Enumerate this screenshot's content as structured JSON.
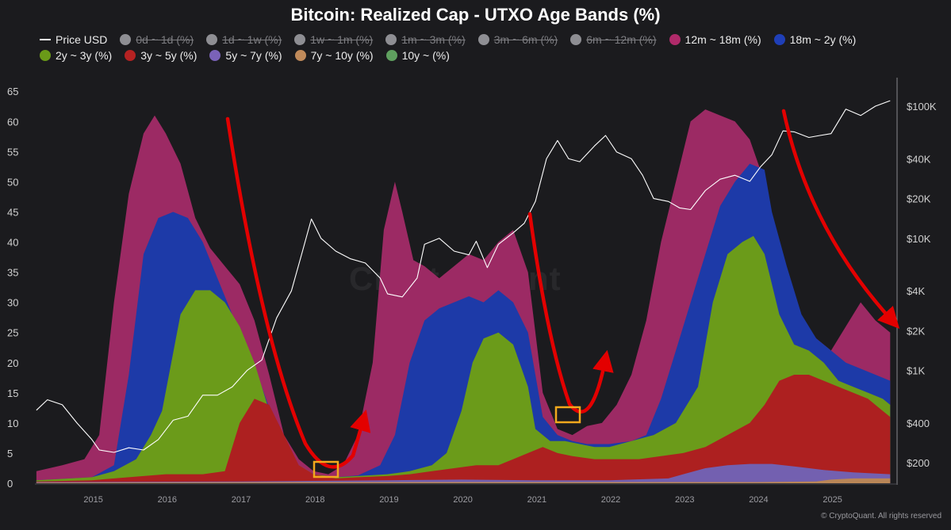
{
  "chart_data": {
    "type": "area",
    "title": "Bitcoin: Realized Cap - UTXO Age Bands (%)",
    "x_years": [
      "2015",
      "2016",
      "2017",
      "2018",
      "2019",
      "2020",
      "2021",
      "2022",
      "2023",
      "2024",
      "2025"
    ],
    "y_left_ticks": [
      0,
      5,
      10,
      15,
      20,
      25,
      30,
      35,
      40,
      45,
      50,
      55,
      60,
      65
    ],
    "y_right_ticks": [
      "$200",
      "$400",
      "$1K",
      "$2K",
      "$4K",
      "$10K",
      "$20K",
      "$40K",
      "$100K"
    ],
    "y_right_values": [
      200,
      400,
      1000,
      2000,
      4000,
      10000,
      20000,
      40000,
      100000
    ],
    "ylim_left": [
      0,
      67
    ],
    "log_right": true,
    "legend": [
      {
        "name": "Price USD",
        "color": "#ffffff",
        "active": true,
        "kind": "line"
      },
      {
        "name": "0d ~ 1d (%)",
        "color": "#8e8e93",
        "active": false
      },
      {
        "name": "1d ~ 1w (%)",
        "color": "#8e8e93",
        "active": false
      },
      {
        "name": "1w ~ 1m (%)",
        "color": "#8e8e93",
        "active": false
      },
      {
        "name": "1m ~ 3m (%)",
        "color": "#8e8e93",
        "active": false
      },
      {
        "name": "3m ~ 6m (%)",
        "color": "#8e8e93",
        "active": false
      },
      {
        "name": "6m ~ 12m (%)",
        "color": "#8e8e93",
        "active": false
      },
      {
        "name": "12m ~ 18m (%)",
        "color": "#b02a6a",
        "active": true
      },
      {
        "name": "18m ~ 2y (%)",
        "color": "#1f3fb8",
        "active": true
      },
      {
        "name": "2y ~ 3y (%)",
        "color": "#6a9a18",
        "active": true
      },
      {
        "name": "3y ~ 5y (%)",
        "color": "#b52222",
        "active": true
      },
      {
        "name": "5y ~ 7y (%)",
        "color": "#7a62b8",
        "active": true
      },
      {
        "name": "7y ~ 10y (%)",
        "color": "#c08a5a",
        "active": true
      },
      {
        "name": "10y ~ (%)",
        "color": "#5fa05f",
        "active": true
      }
    ],
    "series_stacked_totals": [
      {
        "name": "12m ~ 18m (%)",
        "color": "#9c2a64",
        "x": [
          2014.25,
          2014.6,
          2014.9,
          2015.1,
          2015.3,
          2015.5,
          2015.7,
          2015.85,
          2016.0,
          2016.2,
          2016.4,
          2016.6,
          2016.8,
          2017.0,
          2017.2,
          2017.4,
          2017.6,
          2017.8,
          2018.0,
          2018.2,
          2018.4,
          2018.6,
          2018.8,
          2018.95,
          2019.1,
          2019.2,
          2019.35,
          2019.5,
          2019.7,
          2019.9,
          2020.1,
          2020.3,
          2020.5,
          2020.7,
          2020.9,
          2021.1,
          2021.3,
          2021.5,
          2021.7,
          2021.9,
          2022.1,
          2022.3,
          2022.5,
          2022.7,
          2022.9,
          2023.1,
          2023.3,
          2023.5,
          2023.7,
          2023.9,
          2024.1,
          2024.25,
          2024.4,
          2024.6,
          2024.8,
          2025.0,
          2025.2,
          2025.4,
          2025.6,
          2025.8
        ],
        "values": [
          2,
          3,
          4,
          8,
          30,
          48,
          58,
          61,
          58,
          53,
          44,
          39,
          36,
          33,
          27,
          18,
          8,
          4,
          2,
          1.5,
          3,
          8,
          20,
          42,
          50,
          45,
          37,
          36,
          34,
          36,
          38,
          37,
          40,
          42,
          35,
          15,
          9,
          8,
          9.5,
          10,
          13,
          18,
          27,
          40,
          50,
          60,
          62,
          61,
          60,
          57,
          50,
          35,
          30,
          27,
          24,
          22,
          26,
          30,
          27,
          25
        ]
      },
      {
        "name": "18m ~ 2y (%)",
        "color": "#1d3aa8",
        "x": [
          2014.25,
          2015.0,
          2015.3,
          2015.5,
          2015.7,
          2015.9,
          2016.1,
          2016.3,
          2016.5,
          2016.7,
          2016.9,
          2017.1,
          2017.3,
          2017.5,
          2017.7,
          2017.9,
          2018.1,
          2018.3,
          2018.6,
          2018.9,
          2019.1,
          2019.3,
          2019.5,
          2019.7,
          2019.9,
          2020.1,
          2020.3,
          2020.5,
          2020.7,
          2020.9,
          2021.0,
          2021.1,
          2021.3,
          2021.5,
          2021.7,
          2022.0,
          2022.3,
          2022.5,
          2022.7,
          2022.9,
          2023.1,
          2023.3,
          2023.5,
          2023.7,
          2023.9,
          2024.1,
          2024.2,
          2024.4,
          2024.6,
          2024.8,
          2025.0,
          2025.2,
          2025.4,
          2025.6,
          2025.8
        ],
        "values": [
          0.5,
          1,
          3,
          18,
          38,
          44,
          45,
          44,
          40,
          34,
          28,
          22,
          16,
          9,
          4,
          2,
          1.2,
          1,
          1.3,
          3,
          8,
          20,
          27,
          29,
          30,
          31,
          30,
          32,
          30,
          25,
          18,
          11,
          8,
          7,
          6.5,
          6.5,
          7,
          8,
          14,
          22,
          30,
          38,
          46,
          50,
          53,
          52,
          45,
          36,
          28,
          24,
          22,
          20,
          19,
          18,
          17
        ]
      },
      {
        "name": "2y ~ 3y (%)",
        "color": "#6b9b1a",
        "x": [
          2014.25,
          2015.0,
          2015.3,
          2015.6,
          2015.8,
          2015.95,
          2016.2,
          2016.4,
          2016.6,
          2016.8,
          2017.0,
          2017.2,
          2017.4,
          2017.6,
          2017.8,
          2018.0,
          2018.3,
          2018.6,
          2019.0,
          2019.3,
          2019.6,
          2019.8,
          2020.0,
          2020.15,
          2020.3,
          2020.5,
          2020.7,
          2020.9,
          2021.0,
          2021.2,
          2021.4,
          2021.6,
          2021.8,
          2022.0,
          2022.3,
          2022.6,
          2022.9,
          2023.2,
          2023.4,
          2023.6,
          2023.8,
          2023.95,
          2024.1,
          2024.3,
          2024.5,
          2024.7,
          2024.9,
          2025.1,
          2025.3,
          2025.5,
          2025.7,
          2025.8
        ],
        "values": [
          0.5,
          1,
          2,
          4,
          8,
          12,
          28,
          32,
          32,
          30,
          26,
          20,
          12,
          6,
          3,
          1.5,
          1,
          1.2,
          1.5,
          2,
          3,
          5,
          12,
          20,
          24,
          25,
          23,
          16,
          9,
          7,
          7,
          6.5,
          6,
          6,
          7,
          8,
          10,
          16,
          30,
          38,
          40,
          41,
          38,
          28,
          23,
          22,
          20,
          17,
          16,
          15,
          14,
          13
        ]
      },
      {
        "name": "3y ~ 5y (%)",
        "color": "#ad2020",
        "x": [
          2014.25,
          2015.0,
          2015.5,
          2016.0,
          2016.5,
          2016.8,
          2017.0,
          2017.2,
          2017.4,
          2017.6,
          2017.8,
          2018.0,
          2018.3,
          2018.6,
          2019.0,
          2019.3,
          2019.6,
          2019.9,
          2020.2,
          2020.5,
          2020.7,
          2020.9,
          2021.1,
          2021.3,
          2021.5,
          2021.8,
          2022.1,
          2022.4,
          2022.7,
          2023.0,
          2023.3,
          2023.6,
          2023.9,
          2024.1,
          2024.3,
          2024.5,
          2024.7,
          2024.9,
          2025.1,
          2025.3,
          2025.5,
          2025.7,
          2025.8
        ],
        "values": [
          0.3,
          0.5,
          1,
          1.5,
          1.5,
          2,
          10,
          14,
          13,
          8,
          3,
          1.5,
          0.8,
          1,
          1.2,
          1.5,
          2,
          2.5,
          3,
          3,
          4,
          5,
          6,
          5,
          4.5,
          4,
          4,
          4,
          4.5,
          5,
          6,
          8,
          10,
          13,
          17,
          18,
          18,
          17,
          16,
          15,
          14,
          12,
          11
        ]
      },
      {
        "name": "5y ~ 7y (%)",
        "color": "#7360b0",
        "x": [
          2014.25,
          2017.0,
          2018.0,
          2019.0,
          2020.0,
          2021.0,
          2022.0,
          2022.8,
          2023.0,
          2023.3,
          2023.6,
          2023.9,
          2024.2,
          2024.5,
          2024.9,
          2025.3,
          2025.8
        ],
        "values": [
          0.2,
          0.3,
          0.4,
          0.5,
          0.6,
          0.5,
          0.5,
          0.8,
          1.5,
          2.5,
          3,
          3.2,
          3.2,
          2.8,
          2.2,
          1.8,
          1.5
        ]
      },
      {
        "name": "7y ~ 10y (%)",
        "color": "#b98657",
        "x": [
          2014.25,
          2018.0,
          2020.0,
          2022.0,
          2024.0,
          2024.8,
          2025.0,
          2025.3,
          2025.8
        ],
        "values": [
          0.1,
          0.2,
          0.2,
          0.2,
          0.2,
          0.3,
          0.6,
          0.8,
          0.8
        ]
      }
    ],
    "price_usd": {
      "x": [
        2014.25,
        2014.4,
        2014.6,
        2014.8,
        2015.0,
        2015.1,
        2015.3,
        2015.5,
        2015.7,
        2015.9,
        2016.1,
        2016.3,
        2016.5,
        2016.7,
        2016.9,
        2017.1,
        2017.3,
        2017.5,
        2017.7,
        2017.85,
        2017.97,
        2018.1,
        2018.3,
        2018.5,
        2018.7,
        2018.9,
        2019.0,
        2019.2,
        2019.4,
        2019.5,
        2019.7,
        2019.9,
        2020.1,
        2020.2,
        2020.35,
        2020.5,
        2020.7,
        2020.85,
        2021.0,
        2021.15,
        2021.3,
        2021.45,
        2021.6,
        2021.8,
        2021.95,
        2022.1,
        2022.3,
        2022.45,
        2022.6,
        2022.8,
        2022.95,
        2023.1,
        2023.3,
        2023.5,
        2023.7,
        2023.9,
        2024.05,
        2024.2,
        2024.35,
        2024.5,
        2024.7,
        2024.85,
        2025.0,
        2025.2,
        2025.4,
        2025.6,
        2025.8
      ],
      "values": [
        500,
        600,
        550,
        400,
        300,
        250,
        240,
        260,
        250,
        300,
        420,
        450,
        650,
        650,
        750,
        1000,
        1200,
        2500,
        4000,
        8000,
        14000,
        10000,
        8000,
        7000,
        6500,
        5000,
        3800,
        3600,
        5000,
        9000,
        10000,
        8000,
        7500,
        9500,
        6000,
        9000,
        11000,
        13000,
        19000,
        40000,
        55000,
        40000,
        38000,
        50000,
        60000,
        45000,
        40000,
        30000,
        20000,
        19000,
        17000,
        16500,
        23000,
        28000,
        30000,
        27000,
        35000,
        43000,
        65000,
        64000,
        58000,
        60000,
        62000,
        95000,
        85000,
        100000,
        110000
      ]
    },
    "annotations": [
      {
        "type": "arrow",
        "color": "#e30000",
        "desc": "decline then rebound after 2017 peak"
      },
      {
        "type": "arrow",
        "color": "#e30000",
        "desc": "decline then rebound after 2020 peak"
      },
      {
        "type": "arrow",
        "color": "#e30000",
        "desc": "decline from 2024 peak"
      },
      {
        "type": "box",
        "color": "#f2a91d",
        "desc": "bottom 2018"
      },
      {
        "type": "box",
        "color": "#f2a91d",
        "desc": "bottom 2021"
      }
    ]
  },
  "watermark": "CryptoQuant",
  "credit": "© CryptoQuant. All rights reserved"
}
